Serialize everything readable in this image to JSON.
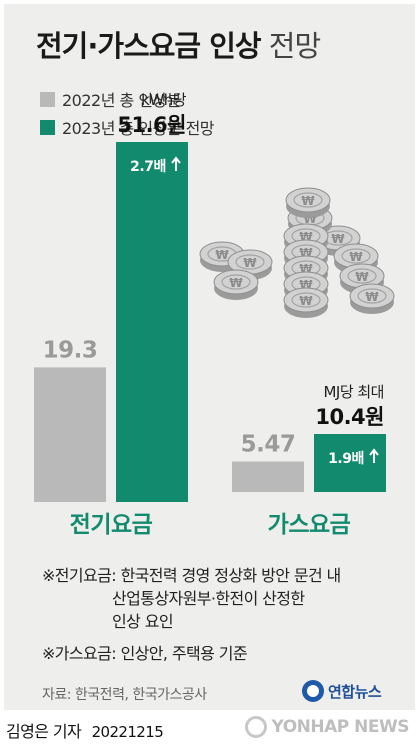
{
  "title": {
    "bold": "전기·가스요금 인상",
    "light": "전망"
  },
  "legend": [
    {
      "label": "2022년 총 인상분",
      "color": "#b9b9b9"
    },
    {
      "label": "2023년 총 인상분 전망",
      "color": "#128a6e"
    }
  ],
  "chart_data": [
    {
      "type": "bar",
      "category": "전기요금",
      "series": [
        {
          "name": "2022년 총 인상분",
          "value": 19.3,
          "label": "19.3"
        },
        {
          "name": "2023년 총 인상분 전망",
          "value": 51.6,
          "label": "51.6원",
          "unit": "kWh당",
          "multiplier": "2.7배"
        }
      ],
      "ylim": [
        0,
        51.6
      ]
    },
    {
      "type": "bar",
      "category": "가스요금",
      "series": [
        {
          "name": "2022년 총 인상분",
          "value": 5.47,
          "label": "5.47"
        },
        {
          "name": "2023년 총 인상분 전망",
          "value": 10.4,
          "label": "10.4원",
          "unit": "MJ당 최대",
          "multiplier": "1.9배"
        }
      ],
      "ylim": [
        0,
        10.4
      ]
    }
  ],
  "coin_icon": "won-coin-stack-icon",
  "colors": {
    "gray": "#b9b9b9",
    "green": "#128a6e",
    "label_gray": "#9a9a9a",
    "background": "#eeeeec"
  },
  "notes": [
    {
      "lines": [
        "※전기요금: 한국전력 경영 정상화 방안 문건 내",
        "산업통상자원부·한전이 산정한",
        "인상 요인"
      ]
    },
    {
      "lines": [
        "※가스요금: 인상안, 주택용 기준"
      ]
    }
  ],
  "source": "자료: 한국전력, 한국가스공사",
  "logo": "연합뉴스",
  "byline": "김영은 기자",
  "date": "20221215",
  "watermark": "YONHAP NEWS"
}
